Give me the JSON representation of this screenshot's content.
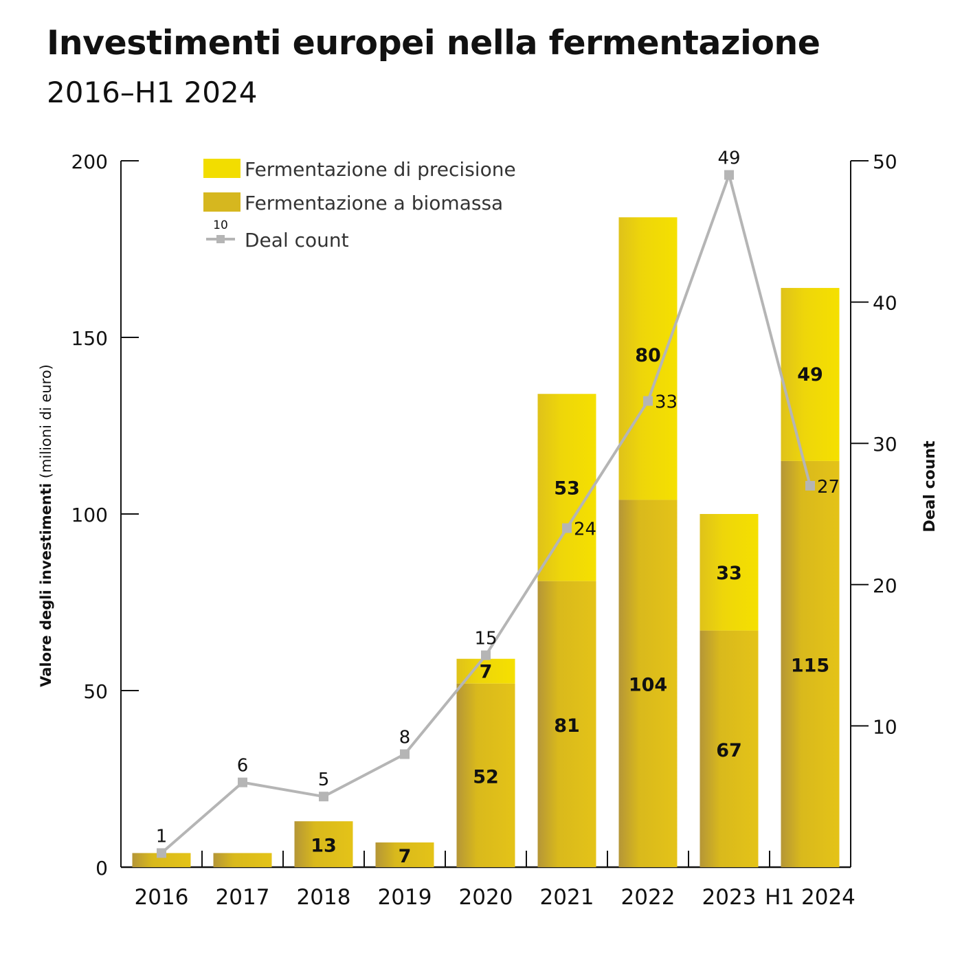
{
  "chart_data": {
    "type": "bar",
    "title": "Investimenti europei nella fermentazione",
    "subtitle": "2016–H1 2024",
    "categories": [
      "2016",
      "2017",
      "2018",
      "2019",
      "2020",
      "2021",
      "2022",
      "2023",
      "H1 2024"
    ],
    "series": [
      {
        "name": "Fermentazione a biomassa",
        "kind": "bar",
        "values": [
          4,
          4,
          13,
          7,
          52,
          81,
          104,
          67,
          115
        ],
        "labels": [
          "",
          "",
          "13",
          "7",
          "52",
          "81",
          "104",
          "67",
          "115"
        ],
        "color": "#dfbf1a"
      },
      {
        "name": "Fermentazione di precisione",
        "kind": "bar",
        "values": [
          0,
          0,
          0,
          0,
          7,
          53,
          80,
          33,
          49
        ],
        "labels": [
          "",
          "",
          "",
          "",
          "7",
          "53",
          "80",
          "33",
          "49"
        ],
        "color": "#f2dd00"
      },
      {
        "name": "Deal count",
        "kind": "line",
        "axis": "right",
        "values": [
          1,
          6,
          5,
          8,
          15,
          24,
          33,
          49,
          27
        ],
        "color": "#b5b5b5"
      }
    ],
    "legend_marker_label": "10",
    "ylabel_bold": "Valore degli investimenti",
    "ylabel_light": " (milioni di euro)",
    "y2label": "Deal count",
    "ylim": [
      0,
      200
    ],
    "yticks": [
      0,
      50,
      100,
      150,
      200
    ],
    "y2lim": [
      0,
      50
    ],
    "y2ticks": [
      10,
      20,
      30,
      40,
      50
    ],
    "legend_position": "top-left",
    "grid": false
  }
}
